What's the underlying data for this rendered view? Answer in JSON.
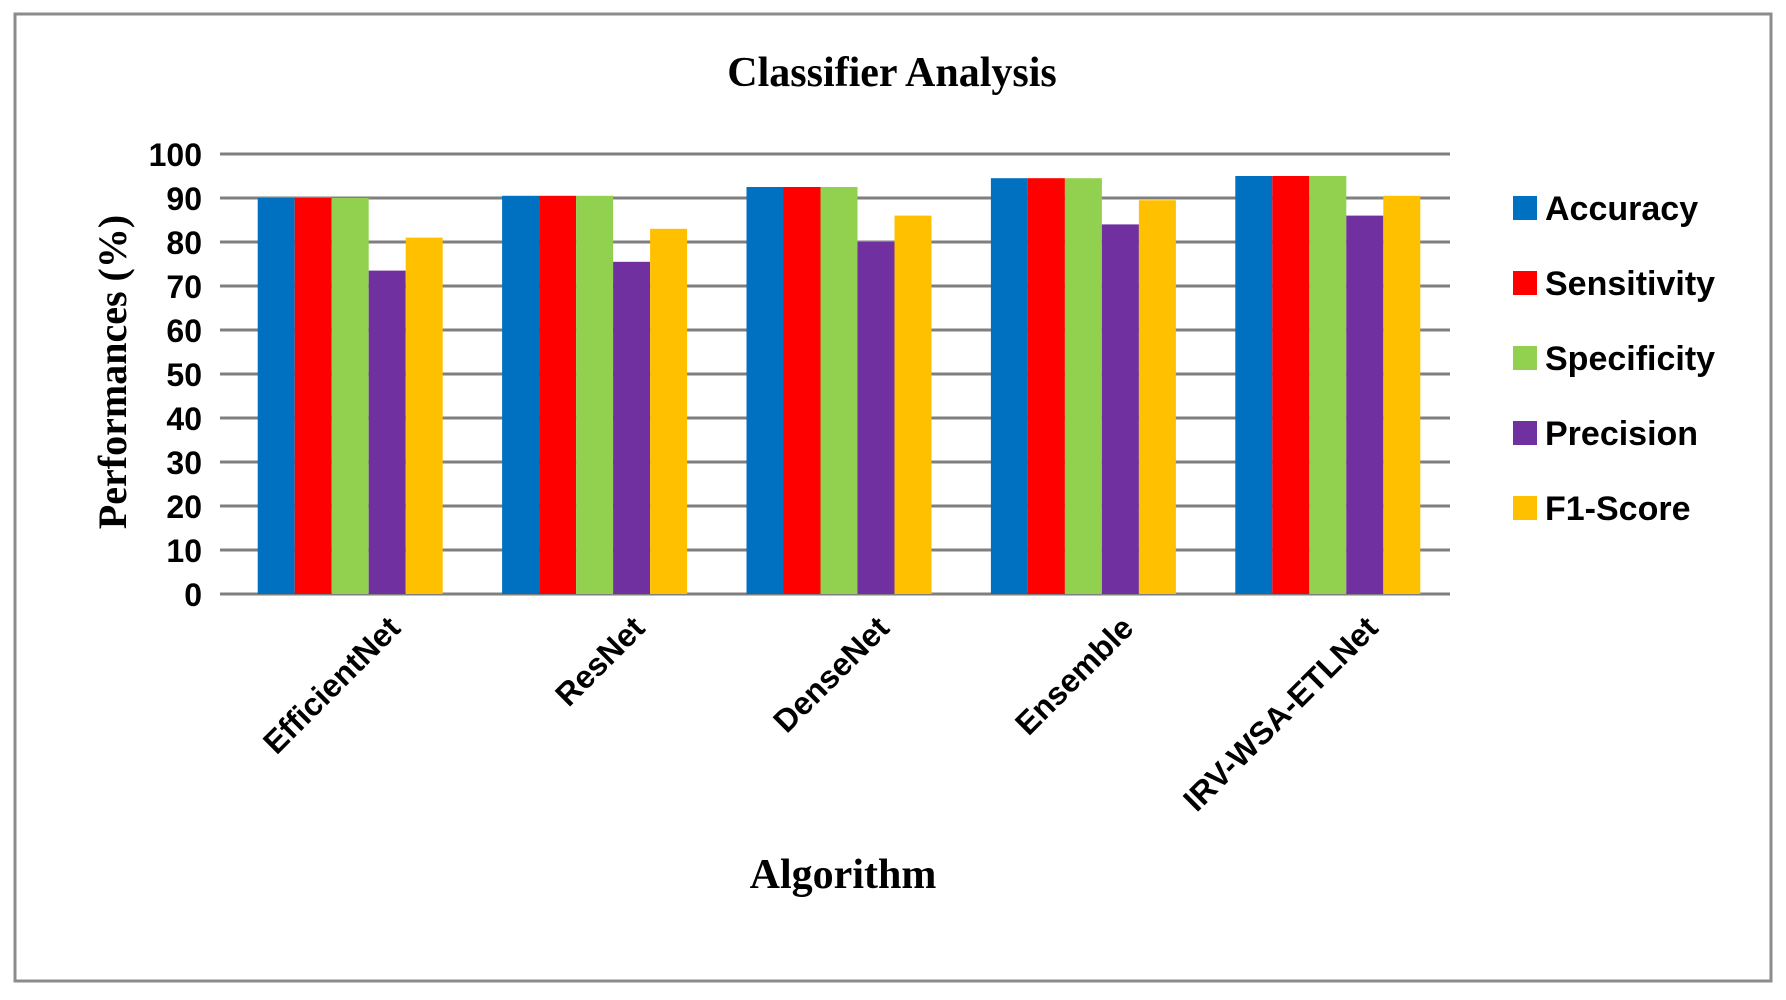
{
  "chart_data": {
    "type": "bar",
    "title": "Classifier Analysis",
    "xlabel": "Algorithm",
    "ylabel": "Performances (%)",
    "ylim": [
      0,
      100
    ],
    "yticks": [
      0,
      10,
      20,
      30,
      40,
      50,
      60,
      70,
      80,
      90,
      100
    ],
    "grid": true,
    "legend_position": "right",
    "categories": [
      "EfficientNet",
      "ResNet",
      "DenseNet",
      "Ensemble",
      "IRV-WSA-ETLNet"
    ],
    "series": [
      {
        "name": "Accuracy",
        "color": "#0070C0",
        "values": [
          90,
          90.5,
          92.5,
          94.5,
          95
        ]
      },
      {
        "name": "Sensitivity",
        "color": "#FF0000",
        "values": [
          90,
          90.5,
          92.5,
          94.5,
          95
        ]
      },
      {
        "name": "Specificity",
        "color": "#92D050",
        "values": [
          90,
          90.5,
          92.5,
          94.5,
          95
        ]
      },
      {
        "name": "Precision",
        "color": "#7030A0",
        "values": [
          73.5,
          75.5,
          80,
          84,
          86
        ]
      },
      {
        "name": "F1-Score",
        "color": "#FFC000",
        "values": [
          81,
          83,
          86,
          89.5,
          90.5
        ]
      }
    ]
  }
}
